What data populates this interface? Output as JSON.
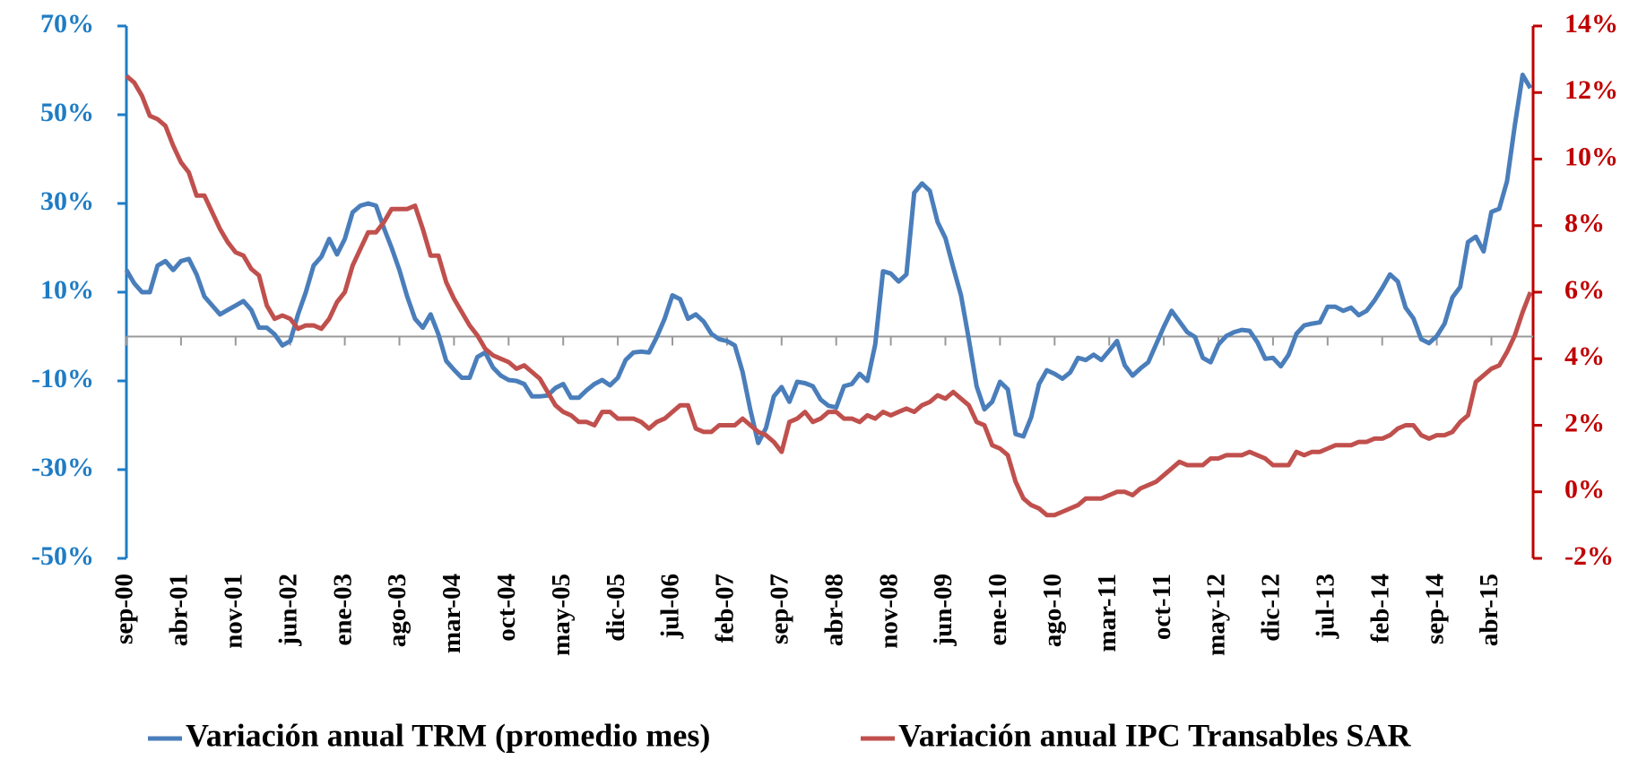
{
  "chart_data": {
    "type": "line",
    "categories": [
      "sep-00",
      null,
      null,
      null,
      null,
      null,
      null,
      "abr-01",
      null,
      null,
      null,
      null,
      null,
      null,
      "nov-01",
      null,
      null,
      null,
      null,
      null,
      null,
      "jun-02",
      null,
      null,
      null,
      null,
      null,
      null,
      "ene-03",
      null,
      null,
      null,
      null,
      null,
      null,
      "ago-03",
      null,
      null,
      null,
      null,
      null,
      null,
      "mar-04",
      null,
      null,
      null,
      null,
      null,
      null,
      "oct-04",
      null,
      null,
      null,
      null,
      null,
      null,
      "may-05",
      null,
      null,
      null,
      null,
      null,
      null,
      "dic-05",
      null,
      null,
      null,
      null,
      null,
      null,
      "jul-06",
      null,
      null,
      null,
      null,
      null,
      null,
      "feb-07",
      null,
      null,
      null,
      null,
      null,
      null,
      "sep-07",
      null,
      null,
      null,
      null,
      null,
      null,
      "abr-08",
      null,
      null,
      null,
      null,
      null,
      null,
      "nov-08",
      null,
      null,
      null,
      null,
      null,
      null,
      "jun-09",
      null,
      null,
      null,
      null,
      null,
      null,
      "ene-10",
      null,
      null,
      null,
      null,
      null,
      null,
      "ago-10",
      null,
      null,
      null,
      null,
      null,
      null,
      "mar-11",
      null,
      null,
      null,
      null,
      null,
      null,
      "oct-11",
      null,
      null,
      null,
      null,
      null,
      null,
      "may-12",
      null,
      null,
      null,
      null,
      null,
      null,
      "dic-12",
      null,
      null,
      null,
      null,
      null,
      null,
      "jul-13",
      null,
      null,
      null,
      null,
      null,
      null,
      "feb-14",
      null,
      null,
      null,
      null,
      null,
      null,
      "sep-14",
      null,
      null,
      null,
      null,
      null,
      null,
      "abr-15",
      null,
      null,
      null,
      null,
      null
    ],
    "series": [
      {
        "name": "Variación anual TRM (promedio mes)",
        "color": "#4a7ebb",
        "values": [
          15,
          12,
          10,
          10,
          16,
          17,
          15,
          17,
          17.5,
          14,
          9,
          7,
          5,
          6,
          7,
          8,
          6,
          2,
          2,
          0.5,
          -2,
          -1,
          5,
          10,
          16,
          18,
          22,
          18.5,
          22,
          28,
          29.5,
          30,
          29.5,
          24.5,
          20,
          15,
          9,
          4,
          2,
          5,
          0.5,
          -5.5,
          -7.5,
          -9.3,
          -9.3,
          -4.6,
          -3.6,
          -7,
          -8.8,
          -9.8,
          -10,
          -10.7,
          -13.5,
          -13.5,
          -13.3,
          -11.6,
          -10.7,
          -13.8,
          -13.8,
          -12.1,
          -10.7,
          -9.8,
          -11,
          -9.3,
          -5.3,
          -3.6,
          -3.4,
          -3.6,
          -0.1,
          4,
          9.3,
          8.4,
          4,
          5,
          3.4,
          0.6,
          -0.6,
          -1,
          -2,
          -8,
          -16.6,
          -24,
          -20.6,
          -13.5,
          -11.4,
          -14.7,
          -10.2,
          -10.5,
          -11.2,
          -14.2,
          -15.6,
          -16,
          -11.2,
          -10.7,
          -8.4,
          -10,
          -1.8,
          14.7,
          14.2,
          12.4,
          14,
          32.4,
          34.5,
          32.8,
          25.8,
          22.2,
          15.6,
          9.3,
          -0.6,
          -11.2,
          -16.4,
          -14.7,
          -10.2,
          -11.9,
          -22,
          -22.5,
          -18.2,
          -10.7,
          -7.6,
          -8.4,
          -9.5,
          -8.1,
          -4.8,
          -5.3,
          -4.1,
          -5.3,
          -3.2,
          -1,
          -6.5,
          -8.8,
          -7.2,
          -5.8,
          -1.8,
          2.2,
          5.8,
          3.4,
          1,
          -0.1,
          -4.8,
          -5.8,
          -1.8,
          0.1,
          1,
          1.5,
          1.3,
          -1.3,
          -5,
          -4.8,
          -6.7,
          -4.1,
          0.6,
          2.5,
          2.9,
          3.2,
          6.7,
          6.7,
          5.8,
          6.5,
          4.8,
          5.8,
          8.1,
          10.9,
          14,
          12.4,
          6.5,
          4.1,
          -0.6,
          -1.5,
          0.1,
          2.9,
          8.8,
          11.2,
          21.3,
          22.5,
          19.2,
          28.1,
          28.8,
          35,
          47.6,
          59,
          56
        ]
      },
      {
        "name": "Variación anual IPC Transables SAR",
        "color": "#c0504d",
        "axis": "y2",
        "values": [
          12.5,
          12.3,
          11.9,
          11.3,
          11.2,
          11,
          10.4,
          9.9,
          9.6,
          8.9,
          8.9,
          8.4,
          7.9,
          7.5,
          7.2,
          7.1,
          6.7,
          6.5,
          5.6,
          5.2,
          5.3,
          5.2,
          4.9,
          5,
          5,
          4.9,
          5.2,
          5.7,
          6,
          6.8,
          7.3,
          7.8,
          7.8,
          8.1,
          8.5,
          8.5,
          8.5,
          8.6,
          7.9,
          7.1,
          7.1,
          6.3,
          5.8,
          5.4,
          5,
          4.7,
          4.3,
          4.1,
          4,
          3.9,
          3.7,
          3.8,
          3.6,
          3.4,
          3,
          2.6,
          2.4,
          2.3,
          2.1,
          2.1,
          2,
          2.4,
          2.4,
          2.2,
          2.2,
          2.2,
          2.1,
          1.9,
          2.1,
          2.2,
          2.4,
          2.6,
          2.6,
          1.9,
          1.8,
          1.8,
          2,
          2,
          2,
          2.2,
          2,
          1.8,
          1.7,
          1.5,
          1.2,
          2.1,
          2.2,
          2.4,
          2.1,
          2.2,
          2.4,
          2.4,
          2.2,
          2.2,
          2.1,
          2.3,
          2.2,
          2.4,
          2.3,
          2.4,
          2.5,
          2.4,
          2.6,
          2.7,
          2.9,
          2.8,
          3,
          2.8,
          2.6,
          2.1,
          2,
          1.4,
          1.3,
          1.1,
          0.3,
          -0.2,
          -0.4,
          -0.5,
          -0.7,
          -0.7,
          -0.6,
          -0.5,
          -0.4,
          -0.2,
          -0.2,
          -0.2,
          -0.1,
          0,
          0,
          -0.1,
          0.1,
          0.2,
          0.3,
          0.5,
          0.7,
          0.9,
          0.8,
          0.8,
          0.8,
          1,
          1,
          1.1,
          1.1,
          1.1,
          1.2,
          1.1,
          1,
          0.8,
          0.8,
          0.8,
          1.2,
          1.1,
          1.2,
          1.2,
          1.3,
          1.4,
          1.4,
          1.4,
          1.5,
          1.5,
          1.6,
          1.6,
          1.7,
          1.9,
          2,
          2,
          1.7,
          1.6,
          1.7,
          1.7,
          1.8,
          2.1,
          2.3,
          3.3,
          3.5,
          3.7,
          3.8,
          4.2,
          4.7,
          5.4,
          6
        ]
      }
    ],
    "ylim": [
      -50,
      70
    ],
    "yticks": [
      {
        "value": 70,
        "label": "70%"
      },
      {
        "value": 50,
        "label": "50%"
      },
      {
        "value": 30,
        "label": "30%"
      },
      {
        "value": 10,
        "label": "10%"
      },
      {
        "value": -10,
        "label": "-10%"
      },
      {
        "value": -30,
        "label": "-30%"
      },
      {
        "value": -50,
        "label": "-50%"
      }
    ],
    "y2lim": [
      -2,
      14
    ],
    "y2ticks": [
      {
        "value": 14,
        "label": "14%"
      },
      {
        "value": 12,
        "label": "12%"
      },
      {
        "value": 10,
        "label": "10%"
      },
      {
        "value": 8,
        "label": "8%"
      },
      {
        "value": 6,
        "label": "6%"
      },
      {
        "value": 4,
        "label": "4%"
      },
      {
        "value": 2,
        "label": "2%"
      },
      {
        "value": 0,
        "label": "0%"
      },
      {
        "value": -2,
        "label": "-2%"
      }
    ],
    "yaxis_color": "#1f7cc4",
    "y2axis_color": "#c00000",
    "legend": "bottom"
  }
}
